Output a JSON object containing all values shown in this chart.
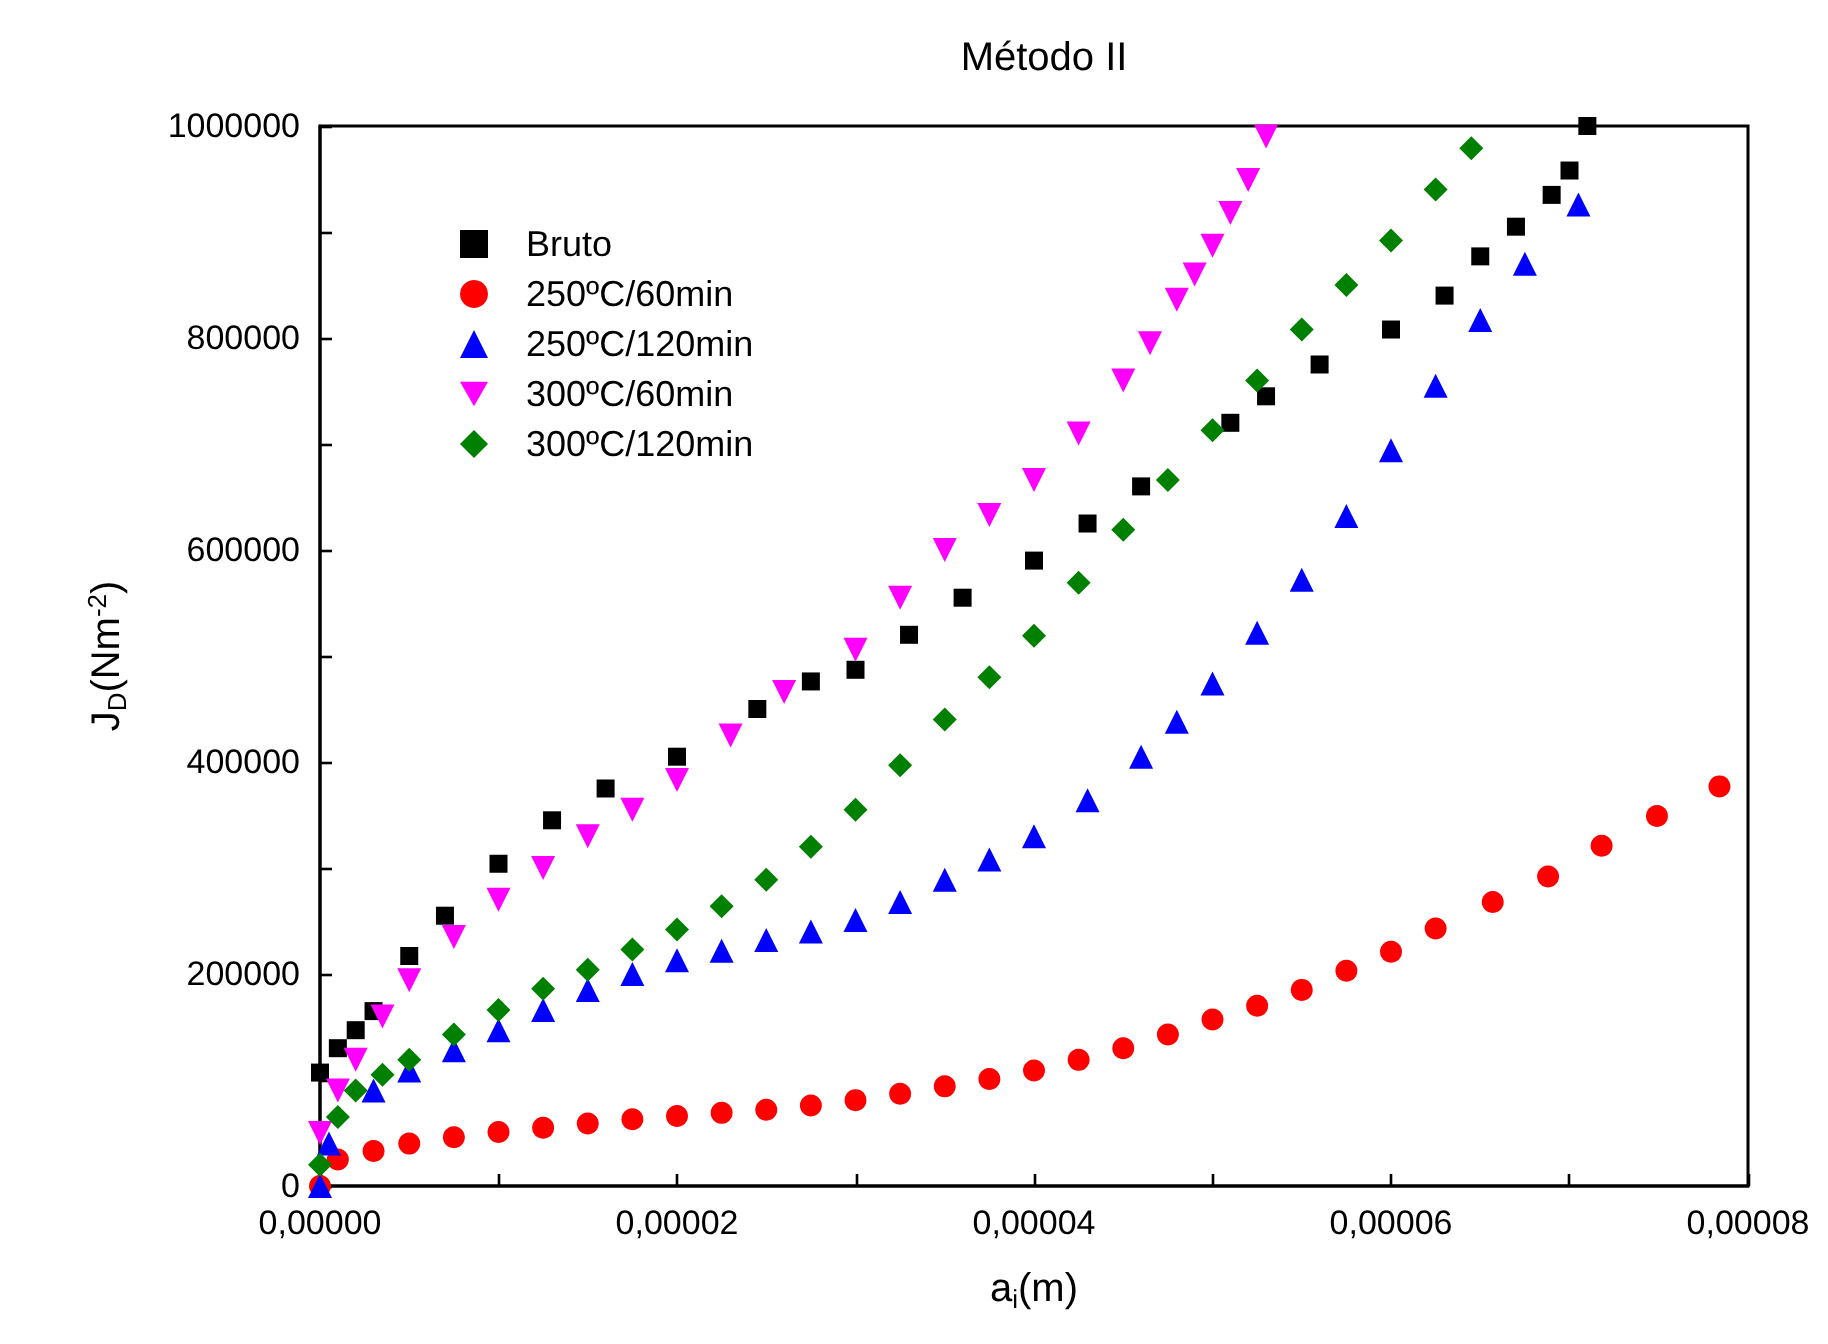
{
  "chart_data": {
    "type": "scatter",
    "title": "Método II",
    "xlabel": "a$_{i}$(m)",
    "ylabel": "J$_{D}$(Nm$^{-2}$)",
    "xlim": [
      0,
      8e-05
    ],
    "xticks": [
      {
        "value": 0,
        "label": "0,00000"
      },
      {
        "value": 1e-05,
        "label": null
      },
      {
        "value": 2e-05,
        "label": "0,00002"
      },
      {
        "value": 3e-05,
        "label": null
      },
      {
        "value": 4e-05,
        "label": "0,00004"
      },
      {
        "value": 5e-05,
        "label": null
      },
      {
        "value": 6e-05,
        "label": "0,00006"
      },
      {
        "value": 7e-05,
        "label": null
      },
      {
        "value": 8e-05,
        "label": "0,00008"
      }
    ],
    "ylim": [
      0,
      1000000
    ],
    "yticks": [
      0,
      {
        "value": 100000,
        "label": null
      },
      200000,
      {
        "value": 300000,
        "label": null
      },
      400000,
      {
        "value": 500000,
        "label": null
      },
      600000,
      {
        "value": 700000,
        "label": null
      },
      800000,
      {
        "value": 900000,
        "label": null
      },
      1000000
    ],
    "grid": false,
    "legend": "top left",
    "series": [
      {
        "name": "Bruto",
        "color": "#000000",
        "marker": "square",
        "x": [
          0,
          1e-06,
          2e-06,
          3e-06,
          5e-06,
          7e-06,
          1e-05,
          1.3e-05,
          1.6e-05,
          2e-05,
          2.45e-05,
          2.75e-05,
          3e-05,
          3.3e-05,
          3.6e-05,
          4e-05,
          4.3e-05,
          4.6e-05,
          5.1e-05,
          5.3e-05,
          5.6e-05,
          6e-05,
          6.3e-05,
          6.5e-05,
          6.7e-05,
          6.9e-05,
          7e-05,
          7.1e-05
        ],
        "values": [
          107000,
          130000,
          147000,
          165000,
          217000,
          255000,
          304000,
          345000,
          375000,
          405000,
          450000,
          476000,
          487000,
          520000,
          555000,
          590000,
          625000,
          660000,
          720000,
          745000,
          775000,
          808000,
          840000,
          877000,
          905000,
          935000,
          958000,
          1000000
        ]
      },
      {
        "name": "250ºC/60min",
        "color": "#ff0000",
        "marker": "circle",
        "x": [
          0,
          1e-06,
          3e-06,
          5e-06,
          7.5e-06,
          1e-05,
          1.25e-05,
          1.5e-05,
          1.75e-05,
          2e-05,
          2.25e-05,
          2.5e-05,
          2.75e-05,
          3e-05,
          3.25e-05,
          3.5e-05,
          3.75e-05,
          4e-05,
          4.25e-05,
          4.5e-05,
          4.75e-05,
          5e-05,
          5.25e-05,
          5.5e-05,
          5.75e-05,
          6e-05,
          6.25e-05,
          6.57e-05,
          6.88e-05,
          7.18e-05,
          7.49e-05,
          7.84e-05
        ],
        "values": [
          0,
          25000,
          33000,
          40000,
          46000,
          51000,
          55000,
          59000,
          63000,
          66000,
          69000,
          72000,
          76000,
          81000,
          87000,
          94000,
          101000,
          109000,
          119000,
          130000,
          143000,
          157000,
          170000,
          185000,
          203000,
          221000,
          243000,
          268000,
          292000,
          321000,
          349000,
          377000
        ]
      },
      {
        "name": "250ºC/120min",
        "color": "#0000ff",
        "marker": "triangle",
        "x": [
          0,
          5e-07,
          3e-06,
          5e-06,
          7.5e-06,
          1e-05,
          1.25e-05,
          1.5e-05,
          1.75e-05,
          2e-05,
          2.25e-05,
          2.5e-05,
          2.75e-05,
          3e-05,
          3.25e-05,
          3.5e-05,
          3.75e-05,
          4e-05,
          4.3e-05,
          4.6e-05,
          4.8e-05,
          5e-05,
          5.25e-05,
          5.5e-05,
          5.75e-05,
          6e-05,
          6.25e-05,
          6.5e-05,
          6.75e-05,
          7.05e-05
        ],
        "values": [
          0,
          40000,
          90000,
          109000,
          128000,
          147000,
          166000,
          185000,
          200000,
          213000,
          222000,
          232000,
          240000,
          251000,
          268000,
          289000,
          308000,
          330000,
          364000,
          405000,
          438000,
          474000,
          522000,
          572000,
          632000,
          694000,
          755000,
          817000,
          870000,
          926000
        ]
      },
      {
        "name": "300ºC/60min",
        "color": "#ff00ff",
        "marker": "triangle-down",
        "x": [
          0,
          1e-06,
          2e-06,
          3.5e-06,
          5e-06,
          7.5e-06,
          1e-05,
          1.25e-05,
          1.5e-05,
          1.75e-05,
          2e-05,
          2.3e-05,
          2.6e-05,
          3e-05,
          3.25e-05,
          3.5e-05,
          3.75e-05,
          4e-05,
          4.25e-05,
          4.5e-05,
          4.65e-05,
          4.8e-05,
          4.9e-05,
          5e-05,
          5.1e-05,
          5.2e-05,
          5.3e-05
        ],
        "values": [
          50000,
          90000,
          119000,
          160000,
          194000,
          235000,
          270000,
          300000,
          330000,
          355000,
          383000,
          425000,
          466000,
          506000,
          555000,
          600000,
          633000,
          666000,
          710000,
          760000,
          795000,
          836000,
          860000,
          887000,
          918000,
          949000,
          990000
        ]
      },
      {
        "name": "300ºC/120min",
        "color": "#008000",
        "marker": "diamond",
        "x": [
          0,
          1e-06,
          2e-06,
          3.5e-06,
          5e-06,
          7.5e-06,
          1e-05,
          1.25e-05,
          1.5e-05,
          1.75e-05,
          2e-05,
          2.25e-05,
          2.5e-05,
          2.75e-05,
          3e-05,
          3.25e-05,
          3.5e-05,
          3.75e-05,
          4e-05,
          4.25e-05,
          4.5e-05,
          4.75e-05,
          5e-05,
          5.25e-05,
          5.5e-05,
          5.75e-05,
          6e-05,
          6.25e-05,
          6.45e-05
        ],
        "values": [
          20000,
          65000,
          90000,
          105000,
          119000,
          143000,
          166000,
          186000,
          204000,
          223000,
          242000,
          264000,
          289000,
          320000,
          355000,
          397000,
          440000,
          480000,
          519000,
          569000,
          619000,
          666000,
          713000,
          760000,
          808000,
          850000,
          892000,
          940000,
          979000
        ]
      }
    ]
  }
}
